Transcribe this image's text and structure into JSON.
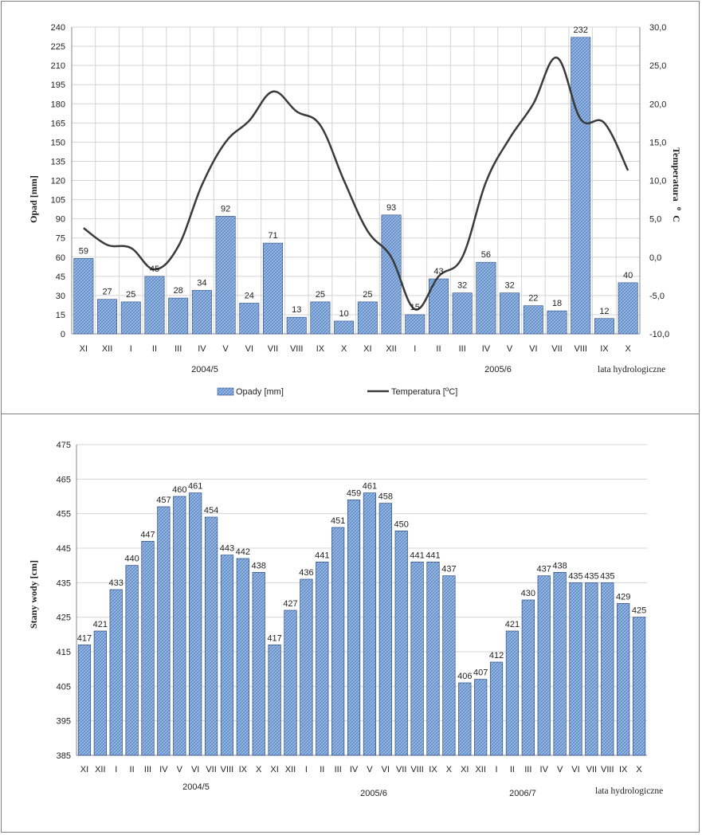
{
  "colors": {
    "bar_fill": "#9dbbe3",
    "bar_fill_dark": "#4f7fc1",
    "bar_stroke": "#2c4e85",
    "line": "#3a3a3a",
    "grid": "#d4d4d4",
    "axis": "#8a8a8a"
  },
  "chart_data": [
    {
      "type": "bar+line",
      "title": "",
      "categories": [
        "XI",
        "XII",
        "I",
        "II",
        "III",
        "IV",
        "V",
        "VI",
        "VII",
        "VIII",
        "IX",
        "X",
        "XI",
        "XII",
        "I",
        "II",
        "III",
        "IV",
        "V",
        "VI",
        "VII",
        "VIII",
        "IX",
        "X"
      ],
      "series": [
        {
          "name": "Opady [mm]",
          "type": "bar",
          "axis": "left",
          "values": [
            59,
            27,
            25,
            45,
            28,
            34,
            92,
            24,
            71,
            13,
            25,
            10,
            25,
            93,
            15,
            43,
            32,
            56,
            32,
            22,
            18,
            232,
            12,
            40
          ],
          "labels": [
            "59",
            "27",
            "25",
            "45",
            "28",
            "34",
            "92",
            "24",
            "71",
            "13",
            "25",
            "10",
            "25",
            "93",
            "15",
            "43",
            "32",
            "56",
            "32",
            "22",
            "18",
            "232",
            "12",
            "40"
          ]
        },
        {
          "name": "Temperatura [°C]",
          "type": "line",
          "axis": "right",
          "values": [
            3.8,
            1.6,
            1.2,
            -1.6,
            1.4,
            9.4,
            15.0,
            17.8,
            21.6,
            19.0,
            17.2,
            10.0,
            3.4,
            0.0,
            -6.8,
            -2.5,
            0.0,
            9.8,
            15.5,
            20.0,
            26.0,
            18.0,
            17.5,
            11.3
          ]
        }
      ],
      "ylabel": "Opad [mm]",
      "ylim": [
        0,
        240
      ],
      "yticks": [
        "0",
        "15",
        "30",
        "45",
        "60",
        "75",
        "90",
        "105",
        "120",
        "135",
        "150",
        "165",
        "180",
        "195",
        "210",
        "225",
        "240"
      ],
      "y2label": "Temperatura °C",
      "y2lim": [
        -10,
        30
      ],
      "y2ticks": [
        "-10,0",
        "-5,0",
        "0,0",
        "5,0",
        "10,0",
        "15,0",
        "20,0",
        "25,0",
        "30,0"
      ],
      "year_groups": [
        "2004/5",
        "2005/6"
      ],
      "axis_note": "lata hydrologiczne",
      "legend": {
        "bars": "Opady [mm]",
        "line_prefix": "Temperatura [",
        "line_sup": "o",
        "line_suffix": "C]",
        "position": "bottom"
      },
      "ylabel_right_main": "Temperatura",
      "ylabel_right_sup": "o",
      "ylabel_right_unit": "C",
      "grid": true
    },
    {
      "type": "bar",
      "title": "",
      "categories": [
        "XI",
        "XII",
        "I",
        "II",
        "III",
        "IV",
        "V",
        "VI",
        "VII",
        "VIII",
        "IX",
        "X",
        "XI",
        "XII",
        "I",
        "II",
        "III",
        "IV",
        "V",
        "VI",
        "VII",
        "VIII",
        "IX",
        "X",
        "XI",
        "XII",
        "I",
        "II",
        "III",
        "IV",
        "V",
        "VI",
        "VII",
        "VIII",
        "IX",
        "X"
      ],
      "series": [
        {
          "name": "Stany wody [cm]",
          "values": [
            417,
            421,
            433,
            440,
            447,
            457,
            460,
            461,
            454,
            443,
            442,
            438,
            417,
            427,
            436,
            441,
            451,
            459,
            461,
            458,
            450,
            441,
            441,
            437,
            406,
            407,
            412,
            421,
            430,
            437,
            438,
            435,
            435,
            435,
            429,
            425
          ],
          "labels": [
            "417",
            "421",
            "433",
            "440",
            "447",
            "457",
            "460",
            "461",
            "454",
            "443",
            "442",
            "438",
            "417",
            "427",
            "436",
            "441",
            "451",
            "459",
            "461",
            "458",
            "450",
            "441",
            "441",
            "437",
            "406",
            "407",
            "412",
            "421",
            "430",
            "437",
            "438",
            "435",
            "435",
            "435",
            "429",
            "425"
          ]
        }
      ],
      "ylabel": "Stany wody [cm]",
      "ylim": [
        385,
        475
      ],
      "yticks": [
        "385",
        "395",
        "405",
        "415",
        "425",
        "435",
        "445",
        "455",
        "465",
        "475"
      ],
      "year_groups": [
        "2004/5",
        "2005/6",
        "2006/7"
      ],
      "axis_note": "lata hydrologiczne",
      "grid": true
    }
  ]
}
